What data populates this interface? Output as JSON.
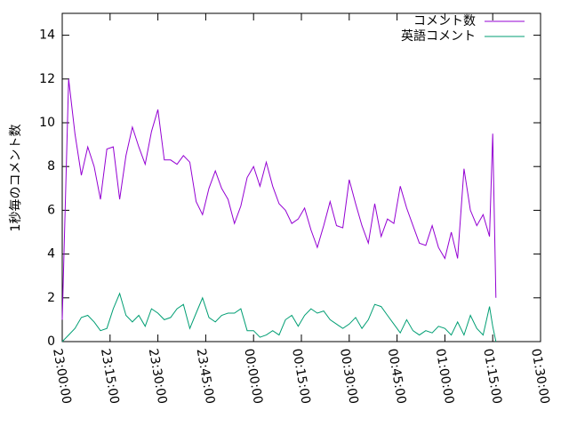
{
  "chart_data": {
    "type": "line",
    "y_label": "1秒毎のコメント数",
    "x": [
      "23:00:00",
      "23:02:00",
      "23:04:00",
      "23:06:00",
      "23:08:00",
      "23:10:00",
      "23:12:00",
      "23:14:00",
      "23:16:00",
      "23:18:00",
      "23:20:00",
      "23:22:00",
      "23:24:00",
      "23:26:00",
      "23:28:00",
      "23:30:00",
      "23:32:00",
      "23:34:00",
      "23:36:00",
      "23:38:00",
      "23:40:00",
      "23:42:00",
      "23:44:00",
      "23:46:00",
      "23:48:00",
      "23:50:00",
      "23:52:00",
      "23:54:00",
      "23:56:00",
      "23:58:00",
      "00:00:00",
      "00:02:00",
      "00:04:00",
      "00:06:00",
      "00:08:00",
      "00:10:00",
      "00:12:00",
      "00:14:00",
      "00:16:00",
      "00:18:00",
      "00:20:00",
      "00:22:00",
      "00:24:00",
      "00:26:00",
      "00:28:00",
      "00:30:00",
      "00:32:00",
      "00:34:00",
      "00:36:00",
      "00:38:00",
      "00:40:00",
      "00:42:00",
      "00:44:00",
      "00:46:00",
      "00:48:00",
      "00:50:00",
      "00:52:00",
      "00:54:00",
      "00:56:00",
      "00:58:00",
      "01:00:00",
      "01:02:00",
      "01:04:00",
      "01:06:00",
      "01:08:00",
      "01:10:00",
      "01:12:00",
      "01:14:00",
      "01:15:00",
      "01:16:00"
    ],
    "series": [
      {
        "name": "コメント数",
        "color": "#9400d3",
        "values": [
          1.0,
          12.0,
          9.5,
          7.6,
          8.9,
          8.0,
          6.5,
          8.8,
          8.9,
          6.5,
          8.5,
          9.8,
          8.9,
          8.1,
          9.6,
          10.6,
          8.3,
          8.3,
          8.1,
          8.5,
          8.2,
          6.4,
          5.8,
          7.0,
          7.8,
          7.0,
          6.5,
          5.4,
          6.2,
          7.5,
          8.0,
          7.1,
          8.2,
          7.1,
          6.3,
          6.0,
          5.4,
          5.6,
          6.1,
          5.1,
          4.3,
          5.3,
          6.4,
          5.3,
          5.2,
          7.4,
          6.3,
          5.3,
          4.5,
          6.3,
          4.8,
          5.6,
          5.4,
          7.1,
          6.1,
          5.3,
          4.5,
          4.4,
          5.3,
          4.3,
          3.8,
          5.0,
          3.8,
          7.9,
          6.0,
          5.3,
          5.8,
          4.8,
          9.5,
          2.0
        ]
      },
      {
        "name": "英語コメント",
        "color": "#009e73",
        "values": [
          0.0,
          0.3,
          0.6,
          1.1,
          1.2,
          0.9,
          0.5,
          0.6,
          1.5,
          2.2,
          1.2,
          0.9,
          1.2,
          0.7,
          1.5,
          1.3,
          1.0,
          1.1,
          1.5,
          1.7,
          0.6,
          1.3,
          2.0,
          1.1,
          0.9,
          1.2,
          1.3,
          1.3,
          1.5,
          0.5,
          0.5,
          0.2,
          0.3,
          0.5,
          0.3,
          1.0,
          1.2,
          0.7,
          1.2,
          1.5,
          1.3,
          1.4,
          1.0,
          0.8,
          0.6,
          0.8,
          1.1,
          0.6,
          1.0,
          1.7,
          1.6,
          1.2,
          0.8,
          0.4,
          1.0,
          0.5,
          0.3,
          0.5,
          0.4,
          0.7,
          0.6,
          0.3,
          0.9,
          0.3,
          1.2,
          0.6,
          0.3,
          1.6,
          0.7,
          0.0
        ]
      }
    ],
    "xlim": [
      "23:00:00",
      "01:30:00"
    ],
    "xticks": [
      "23:00:00",
      "23:15:00",
      "23:30:00",
      "23:45:00",
      "00:00:00",
      "00:15:00",
      "00:30:00",
      "00:45:00",
      "01:00:00",
      "01:15:00",
      "01:30:00"
    ],
    "ylim": [
      0,
      15
    ],
    "yticks": [
      0,
      2,
      4,
      6,
      8,
      10,
      12,
      14
    ],
    "legend": "top-right"
  }
}
